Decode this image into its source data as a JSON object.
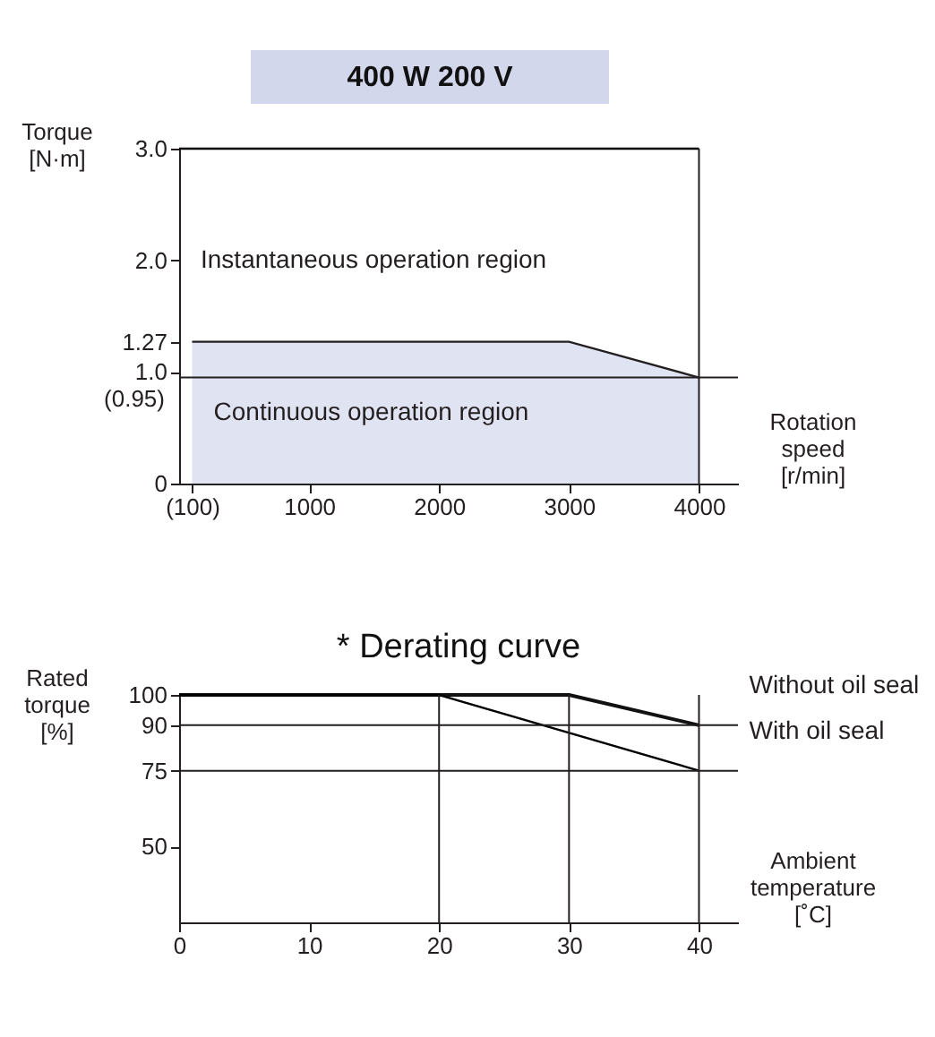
{
  "chart_data": [
    {
      "type": "area",
      "title": "400 W  200 V",
      "xlabel": "Rotation\nspeed\n[r/min]",
      "ylabel": "Torque\n[N·m]",
      "xlim": [
        0,
        4300
      ],
      "ylim": [
        0,
        3.0
      ],
      "xticks": [
        {
          "value": 100,
          "label": "(100)"
        },
        1000,
        2000,
        3000,
        4000
      ],
      "yticks": [
        0,
        {
          "value": 1.0,
          "label": "1.0"
        },
        1.27,
        {
          "value": 2.0,
          "label": "2.0"
        },
        {
          "value": 3.0,
          "label": "3.0"
        }
      ],
      "series": [
        {
          "name": "Continuous operation region",
          "type": "area",
          "color": "#d3d7ec",
          "x": [
            100,
            3000,
            4000
          ],
          "values": [
            1.27,
            1.27,
            0.95
          ]
        },
        {
          "type": "line",
          "color": "#000000",
          "x": [
            0,
            4000
          ],
          "values": [
            3.0,
            3.0
          ]
        }
      ],
      "ref_lines": [
        {
          "axis": "y",
          "value": 0.95,
          "label": "(0.95)",
          "color": "#231f20"
        },
        {
          "axis": "x",
          "value": 4000,
          "color": "#231f20"
        }
      ],
      "annotations": [
        "Instantaneous operation region"
      ]
    },
    {
      "type": "line",
      "title": "* Derating curve",
      "xlabel": "Ambient\ntemperature\n[˚C]",
      "ylabel": "Rated\ntorque\n[%]",
      "xlim": [
        0,
        43
      ],
      "ylim": [
        25,
        100
      ],
      "xticks": [
        0,
        10,
        20,
        30,
        40
      ],
      "yticks": [
        50,
        75,
        90,
        100
      ],
      "series": [
        {
          "name": "Without oil seal",
          "color": "#111111",
          "x": [
            0,
            30,
            40
          ],
          "values": [
            100,
            100,
            90
          ]
        },
        {
          "name": "With oil seal",
          "color": "#000000",
          "x": [
            0,
            20,
            40
          ],
          "values": [
            100,
            100,
            75
          ]
        }
      ],
      "ref_lines": [
        {
          "axis": "y",
          "value": 90,
          "color": "#231f20"
        },
        {
          "axis": "y",
          "value": 75,
          "color": "#231f20"
        },
        {
          "axis": "x",
          "value": 20,
          "color": "#231f20"
        },
        {
          "axis": "x",
          "value": 30,
          "color": "#231f20"
        },
        {
          "axis": "x",
          "value": 40,
          "color": "#231f20"
        }
      ]
    }
  ]
}
